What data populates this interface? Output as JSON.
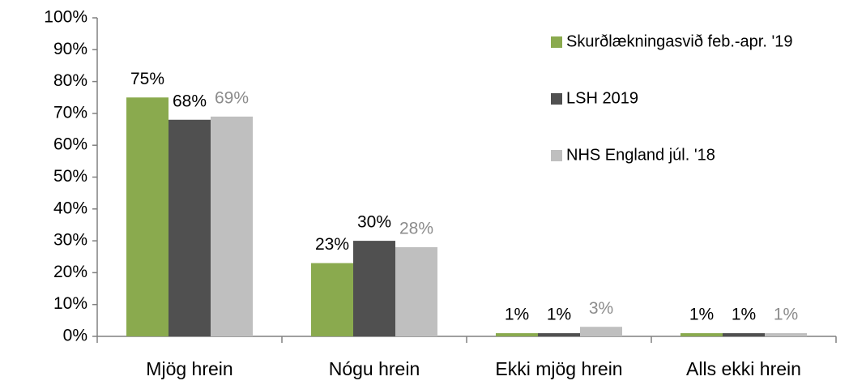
{
  "chart_data": {
    "type": "bar",
    "categories": [
      "Mjög hrein",
      "Nógu hrein",
      "Ekki mjög hrein",
      "Alls ekki hrein"
    ],
    "series": [
      {
        "name": "Skurðlækningasvið feb.-apr. '19",
        "color": "#8aaa4e",
        "label_color": "#000000",
        "values": [
          75,
          23,
          1,
          1
        ],
        "value_labels": [
          "75%",
          "23%",
          "1%",
          "1%"
        ]
      },
      {
        "name": "LSH 2019",
        "color": "#505050",
        "label_color": "#000000",
        "values": [
          68,
          30,
          1,
          1
        ],
        "value_labels": [
          "68%",
          "30%",
          "1%",
          "1%"
        ]
      },
      {
        "name": "NHS England júl. '18",
        "color": "#bfbfbf",
        "label_color": "#8c8c8c",
        "values": [
          69,
          28,
          3,
          1
        ],
        "value_labels": [
          "69%",
          "28%",
          "3%",
          "1%"
        ]
      }
    ],
    "ylim": [
      0,
      100
    ],
    "yticks": [
      {
        "value": 0,
        "label": "0%"
      },
      {
        "value": 10,
        "label": "10%"
      },
      {
        "value": 20,
        "label": "20%"
      },
      {
        "value": 30,
        "label": "30%"
      },
      {
        "value": 40,
        "label": "40%"
      },
      {
        "value": 50,
        "label": "50%"
      },
      {
        "value": 60,
        "label": "60%"
      },
      {
        "value": 70,
        "label": "70%"
      },
      {
        "value": 80,
        "label": "80%"
      },
      {
        "value": 90,
        "label": "90%"
      },
      {
        "value": 100,
        "label": "100%"
      }
    ],
    "grid": false,
    "legend": "right"
  }
}
